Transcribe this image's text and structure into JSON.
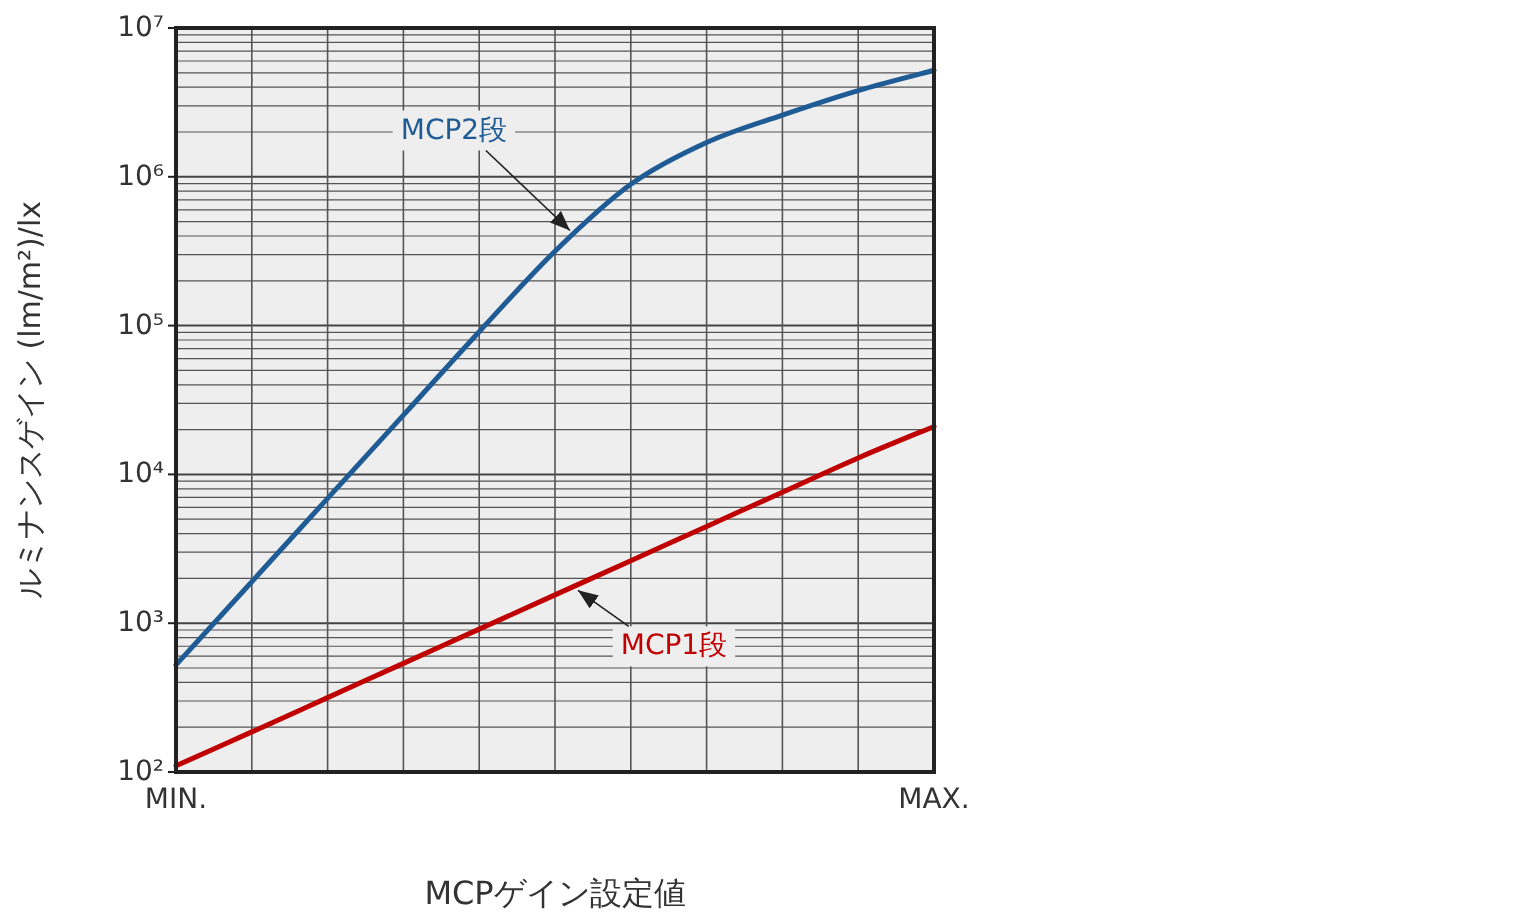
{
  "chart_data": {
    "type": "line",
    "xlabel": "MCPゲイン設定値",
    "ylabel": "ルミナンスゲイン (lm/m²)/lx",
    "log": "y",
    "grid": true,
    "categories": [
      "MIN.",
      null,
      null,
      null,
      null,
      null,
      null,
      null,
      null,
      null,
      "MAX."
    ],
    "ylim": [
      100,
      10000000
    ],
    "yticks": [
      {
        "value": 100,
        "label": "10²"
      },
      {
        "value": 1000,
        "label": "10³"
      },
      {
        "value": 10000,
        "label": "10⁴"
      },
      {
        "value": 100000,
        "label": "10⁵"
      },
      {
        "value": 1000000,
        "label": "10⁶"
      },
      {
        "value": 10000000,
        "label": "10⁷"
      }
    ],
    "series": [
      {
        "name": "MCP2段",
        "color": "#1f5b94",
        "values": [
          525,
          1900,
          6900,
          25000,
          91000,
          316000,
          890000,
          1700000,
          2600000,
          3800000,
          5200000
        ]
      },
      {
        "name": "MCP1段",
        "color": "#c00000",
        "values": [
          110,
          186,
          316,
          537,
          912,
          1550,
          2630,
          4470,
          7590,
          12900,
          21000
        ]
      }
    ]
  }
}
